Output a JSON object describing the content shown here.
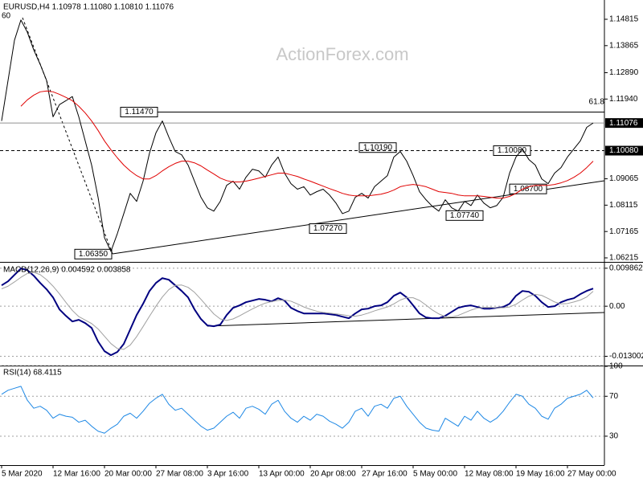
{
  "chart_data": [
    {
      "type": "line",
      "title": "EURUSD,H4  1.10978 1.11080 1.10810 1.11076",
      "watermark": "ActionForex.com",
      "ylim": [
        1.0607,
        1.1551
      ],
      "yticks": [
        1.14815,
        1.13865,
        {
          "value": 1.1289,
          "label": "1.12890"
        },
        {
          "value": 1.1194,
          "label": "1.11940"
        },
        1.09065,
        1.08115,
        1.07165,
        1.06215
      ],
      "grid": false,
      "series": [
        {
          "color": "#000000",
          "width": 1,
          "values": [
            1.1115,
            1.1261,
            1.1406,
            1.1479,
            1.1435,
            1.1371,
            1.1319,
            1.1261,
            1.113,
            1.1174,
            1.1188,
            1.1203,
            1.113,
            1.1043,
            1.0956,
            1.084,
            1.0694,
            1.0645,
            1.0709,
            1.0781,
            1.0854,
            1.0825,
            1.0898,
            1.0999,
            1.1072,
            1.1115,
            1.1057,
            1.1005,
            1.0993,
            1.0956,
            1.0898,
            1.084,
            1.0802,
            1.079,
            1.0825,
            1.0883,
            1.0898,
            1.0869,
            1.0912,
            1.0941,
            1.0935,
            1.0912,
            1.0956,
            1.0985,
            1.0927,
            1.0889,
            1.0869,
            1.0878,
            1.0848,
            1.086,
            1.0869,
            1.0848,
            1.0819,
            1.0781,
            1.079,
            1.084,
            1.0854,
            1.0837,
            1.0878,
            1.0898,
            1.0918,
            1.0985,
            1.1005,
            1.097,
            1.0918,
            1.086,
            1.0831,
            1.0807,
            1.079,
            1.0831,
            1.0802,
            1.079,
            1.0825,
            1.081,
            1.0848,
            1.0819,
            1.0802,
            1.081,
            1.084,
            1.0927,
            1.0985,
            1.1014,
            1.0976,
            1.0956,
            1.0906,
            1.0889,
            1.0927,
            1.0947,
            1.0985,
            1.1014,
            1.1043,
            1.1092,
            1.11076
          ]
        },
        {
          "color": "#e00000",
          "width": 1,
          "values": [
            null,
            null,
            null,
            1.1168,
            1.1191,
            1.1208,
            1.122,
            1.1223,
            1.122,
            1.1211,
            1.12,
            1.1188,
            1.1168,
            1.1144,
            1.1115,
            1.1081,
            1.1043,
            1.1011,
            1.0982,
            1.0956,
            1.0935,
            1.0918,
            1.0906,
            1.0906,
            1.0918,
            1.0935,
            1.095,
            1.0962,
            1.097,
            1.097,
            1.0964,
            1.0953,
            1.0938,
            1.0924,
            1.0909,
            1.09,
            1.0895,
            1.0895,
            1.0898,
            1.0903,
            1.0909,
            1.0915,
            1.0921,
            1.0927,
            1.0927,
            1.0921,
            1.0915,
            1.0906,
            1.0898,
            1.0889,
            1.088,
            1.0871,
            1.0863,
            1.0854,
            1.0848,
            1.0845,
            1.0845,
            1.0845,
            1.0848,
            1.0851,
            1.0857,
            1.0866,
            1.0878,
            1.0883,
            1.0886,
            1.0883,
            1.0878,
            1.0869,
            1.086,
            1.0857,
            1.0854,
            1.0848,
            1.0845,
            1.0845,
            1.0845,
            1.0843,
            1.084,
            1.0837,
            1.0837,
            1.0843,
            1.0854,
            1.0869,
            1.0878,
            1.0883,
            1.0883,
            1.0883,
            1.0886,
            1.0892,
            1.09,
            1.0912,
            1.0927,
            1.0947,
            1.097
          ]
        }
      ],
      "annotations": [
        {
          "value": 1.1147,
          "label": "1.11470",
          "line": "solid"
        },
        {
          "value": 1.1019,
          "label": "1.10190"
        },
        {
          "value": 1.1008,
          "label": "1.10080",
          "line": "dashed",
          "axis_box": true
        },
        {
          "value": 1.087,
          "label": "1.08700"
        },
        {
          "value": 1.0774,
          "label": "1.07740"
        },
        {
          "value": 1.0727,
          "label": "1.07270"
        },
        {
          "value": 1.0635,
          "label": "1.06350"
        }
      ],
      "last_price": {
        "value": 1.11076,
        "label": "1.11076"
      },
      "notes": [
        "60",
        "61.8"
      ]
    },
    {
      "type": "line",
      "title": "MACD(12,26,9) 0.004592 0.003858",
      "ylim": [
        -0.0154,
        0.0113
      ],
      "yticks": [
        0.009862,
        {
          "value": 0,
          "label": "0.00"
        },
        -0.013002
      ],
      "grid": true,
      "series": [
        {
          "color": "#000080",
          "width": 2,
          "values": [
            0.00542,
            0.00646,
            0.00813,
            0.00979,
            0.00938,
            0.00792,
            0.00604,
            0.00438,
            0.00229,
            -0.00083,
            -0.0025,
            -0.00396,
            -0.00354,
            -0.00438,
            -0.00563,
            -0.00917,
            -0.01167,
            -0.01271,
            -0.01188,
            -0.00979,
            -0.00604,
            -0.00229,
            0.00063,
            0.00396,
            0.00604,
            0.00729,
            0.00688,
            0.00542,
            0.00396,
            0.00229,
            -0.00083,
            -0.00333,
            -0.005,
            -0.00521,
            -0.00479,
            -0.00229,
            -0.00042,
            0.00021,
            0.00104,
            0.00146,
            0.00188,
            0.00167,
            0.00125,
            0.00208,
            0.00146,
            -0.00042,
            -0.00125,
            -0.00188,
            -0.00188,
            -0.00188,
            -0.00188,
            -0.00208,
            -0.00229,
            -0.00271,
            -0.00313,
            -0.00188,
            -0.00083,
            -0.00063,
            0,
            0.00021,
            0.00104,
            0.00271,
            0.00354,
            0.00229,
            0.00021,
            -0.00188,
            -0.00292,
            -0.00313,
            -0.00313,
            -0.0025,
            -0.00146,
            -0.00042,
            0,
            0.00021,
            -0.00021,
            -0.00063,
            -0.00063,
            -0.00042,
            -0.00021,
            0.00063,
            0.00271,
            0.00396,
            0.00375,
            0.00271,
            0.00104,
            -0.00021,
            0,
            0.00104,
            0.00167,
            0.00208,
            0.00313,
            0.00398,
            0.004592
          ]
        },
        {
          "color": "#a0a0a0",
          "width": 1,
          "values": [
            0.0045,
            0.0052,
            0.0063,
            0.0075,
            0.0085,
            0.0088,
            0.0082,
            0.0069,
            0.0052,
            0.0032,
            0.001,
            -0.0011,
            -0.0027,
            -0.0036,
            -0.0045,
            -0.0059,
            -0.0078,
            -0.0097,
            -0.011,
            -0.0112,
            -0.0101,
            -0.0079,
            -0.0053,
            -0.0026,
            0.0,
            0.0024,
            0.0043,
            0.0054,
            0.0055,
            0.0049,
            0.0036,
            0.0018,
            -0.0001,
            -0.002,
            -0.0033,
            -0.0037,
            -0.0033,
            -0.0025,
            -0.0016,
            -0.0007,
            0.0001,
            0.0008,
            0.0012,
            0.0015,
            0.0016,
            0.0013,
            0.0006,
            -0.0002,
            -0.0008,
            -0.0013,
            -0.0016,
            -0.0018,
            -0.002,
            -0.0022,
            -0.0025,
            -0.0026,
            -0.0023,
            -0.0018,
            -0.0012,
            -0.0007,
            -0.0002,
            0.0006,
            0.0016,
            0.0022,
            0.0022,
            0.0015,
            0.0003,
            -0.001,
            -0.002,
            -0.0027,
            -0.0028,
            -0.0024,
            -0.0017,
            -0.001,
            -0.0005,
            -0.0003,
            -0.0003,
            -0.0004,
            -0.0004,
            -0.0002,
            0.0005,
            0.0016,
            0.0026,
            0.0031,
            0.0028,
            0.002,
            0.0011,
            0.0006,
            0.0007,
            0.0011,
            0.0016,
            0.0024,
            0.003858
          ]
        }
      ]
    },
    {
      "type": "line",
      "title": "RSI(14) 68.4115",
      "ylim": [
        1,
        100
      ],
      "yticks": [
        100,
        70,
        30
      ],
      "grid": true,
      "categories": [
        "5 Mar 2020",
        null,
        null,
        null,
        null,
        null,
        null,
        null,
        "12 Mar 16:00",
        null,
        null,
        null,
        null,
        null,
        null,
        null,
        "20 Mar 00:00",
        null,
        null,
        null,
        null,
        null,
        null,
        null,
        "27 Mar 08:00",
        null,
        null,
        null,
        null,
        null,
        null,
        null,
        "3 Apr 16:00",
        null,
        null,
        null,
        null,
        null,
        null,
        null,
        "13 Apr 00:00",
        null,
        null,
        null,
        null,
        null,
        null,
        null,
        "20 Apr 08:00",
        null,
        null,
        null,
        null,
        null,
        null,
        null,
        "27 Apr 16:00",
        null,
        null,
        null,
        null,
        null,
        null,
        null,
        "5 May 00:00",
        null,
        null,
        null,
        null,
        null,
        null,
        null,
        "12 May 08:00",
        null,
        null,
        null,
        null,
        null,
        null,
        null,
        "19 May 16:00",
        null,
        null,
        null,
        null,
        null,
        null,
        null,
        "27 May 00:00",
        null,
        null,
        null,
        null
      ],
      "series": [
        {
          "color": "#1e88e5",
          "width": 1,
          "values": [
            72,
            76,
            78,
            80,
            66,
            58,
            60,
            56,
            48,
            52,
            50,
            49,
            44,
            46,
            40,
            35,
            33,
            38,
            42,
            50,
            53,
            48,
            55,
            63,
            68,
            72,
            62,
            56,
            58,
            52,
            46,
            40,
            36,
            38,
            44,
            50,
            54,
            48,
            58,
            60,
            57,
            52,
            62,
            66,
            55,
            48,
            44,
            50,
            46,
            52,
            50,
            45,
            42,
            38,
            44,
            55,
            58,
            50,
            60,
            62,
            58,
            68,
            70,
            60,
            52,
            44,
            38,
            36,
            35,
            48,
            44,
            40,
            50,
            46,
            55,
            48,
            44,
            48,
            55,
            64,
            72,
            70,
            62,
            58,
            50,
            47,
            58,
            62,
            68,
            70,
            72,
            76,
            68.4115
          ]
        }
      ]
    }
  ]
}
